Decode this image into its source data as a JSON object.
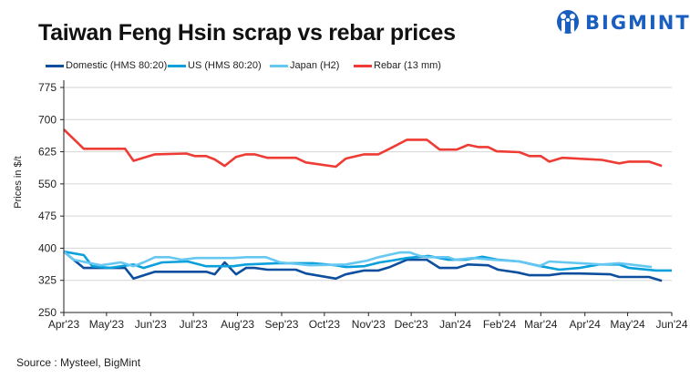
{
  "title": "Taiwan Feng Hsin scrap vs rebar prices",
  "logo_text": "BIGMINT",
  "source": "Source : Mysteel, BigMint",
  "chart_data": {
    "type": "line",
    "title": "Taiwan Feng Hsin scrap vs rebar prices",
    "ylabel": "Prices in $/t",
    "xlabel": "",
    "ylim": [
      250,
      775
    ],
    "yticks": [
      250,
      325,
      400,
      475,
      550,
      625,
      700,
      775
    ],
    "xlim": [
      "2023-04-01",
      "2024-06-01"
    ],
    "xticks": [
      {
        "date": "2023-04-01",
        "label": "Apr'23"
      },
      {
        "date": "2023-05-01",
        "label": "May'23"
      },
      {
        "date": "2023-06-01",
        "label": "Jun'23"
      },
      {
        "date": "2023-07-01",
        "label": "Jul'23"
      },
      {
        "date": "2023-08-01",
        "label": "Aug'23"
      },
      {
        "date": "2023-09-01",
        "label": "Sep'23"
      },
      {
        "date": "2023-10-01",
        "label": "Oct'23"
      },
      {
        "date": "2023-11-01",
        "label": "Nov'23"
      },
      {
        "date": "2023-12-01",
        "label": "Dec'23"
      },
      {
        "date": "2024-01-01",
        "label": "Jan'24"
      },
      {
        "date": "2024-02-01",
        "label": "Feb'24"
      },
      {
        "date": "2024-03-01",
        "label": "Mar'24"
      },
      {
        "date": "2024-04-01",
        "label": "Apr'24"
      },
      {
        "date": "2024-05-01",
        "label": "May'24"
      },
      {
        "date": "2024-06-01",
        "label": "Jun'24"
      }
    ],
    "grid": "horizontal",
    "legend_position": "top",
    "series": [
      {
        "name": "Domestic (HMS 80:20)",
        "color": "#0d4f9e",
        "points": [
          [
            "2023-04-01",
            392
          ],
          [
            "2023-04-15",
            354
          ],
          [
            "2023-05-14",
            354
          ],
          [
            "2023-05-20",
            329
          ],
          [
            "2023-06-04",
            345
          ],
          [
            "2023-07-10",
            345
          ],
          [
            "2023-07-16",
            339
          ],
          [
            "2023-07-23",
            367
          ],
          [
            "2023-07-31",
            339
          ],
          [
            "2023-08-07",
            354
          ],
          [
            "2023-08-13",
            354
          ],
          [
            "2023-08-22",
            350
          ],
          [
            "2023-09-11",
            350
          ],
          [
            "2023-09-18",
            341
          ],
          [
            "2023-10-09",
            329
          ],
          [
            "2023-10-16",
            339
          ],
          [
            "2023-10-29",
            348
          ],
          [
            "2023-11-08",
            348
          ],
          [
            "2023-11-16",
            356
          ],
          [
            "2023-11-28",
            373
          ],
          [
            "2023-12-12",
            373
          ],
          [
            "2023-12-21",
            354
          ],
          [
            "2024-01-02",
            354
          ],
          [
            "2024-01-10",
            362
          ],
          [
            "2024-01-24",
            360
          ],
          [
            "2024-01-31",
            350
          ],
          [
            "2024-02-14",
            343
          ],
          [
            "2024-02-22",
            337
          ],
          [
            "2024-03-07",
            337
          ],
          [
            "2024-03-16",
            341
          ],
          [
            "2024-03-28",
            341
          ],
          [
            "2024-04-19",
            339
          ],
          [
            "2024-04-25",
            333
          ],
          [
            "2024-05-16",
            333
          ],
          [
            "2024-05-25",
            324
          ]
        ]
      },
      {
        "name": "US (HMS 80:20)",
        "color": "#0aa0dc",
        "points": [
          [
            "2023-04-01",
            392
          ],
          [
            "2023-04-15",
            384
          ],
          [
            "2023-04-21",
            358
          ],
          [
            "2023-05-03",
            354
          ],
          [
            "2023-05-20",
            362
          ],
          [
            "2023-05-27",
            354
          ],
          [
            "2023-06-09",
            367
          ],
          [
            "2023-06-27",
            369
          ],
          [
            "2023-07-10",
            358
          ],
          [
            "2023-07-29",
            358
          ],
          [
            "2023-08-07",
            362
          ],
          [
            "2023-08-29",
            365
          ],
          [
            "2023-09-23",
            365
          ],
          [
            "2023-10-09",
            360
          ],
          [
            "2023-10-16",
            356
          ],
          [
            "2023-10-29",
            358
          ],
          [
            "2023-11-09",
            367
          ],
          [
            "2023-11-17",
            371
          ],
          [
            "2023-11-28",
            377
          ],
          [
            "2023-12-13",
            382
          ],
          [
            "2023-12-27",
            373
          ],
          [
            "2024-01-08",
            373
          ],
          [
            "2024-01-20",
            380
          ],
          [
            "2024-01-31",
            373
          ],
          [
            "2024-02-15",
            369
          ],
          [
            "2024-03-01",
            358
          ],
          [
            "2024-03-14",
            350
          ],
          [
            "2024-03-28",
            354
          ],
          [
            "2024-04-11",
            362
          ],
          [
            "2024-04-25",
            362
          ],
          [
            "2024-05-02",
            354
          ],
          [
            "2024-05-21",
            348
          ],
          [
            "2024-06-01",
            348
          ]
        ]
      },
      {
        "name": "Japan (H2)",
        "color": "#66c8f2",
        "points": [
          [
            "2023-04-01",
            392
          ],
          [
            "2023-04-08",
            373
          ],
          [
            "2023-04-27",
            360
          ],
          [
            "2023-05-11",
            367
          ],
          [
            "2023-05-20",
            358
          ],
          [
            "2023-05-27",
            367
          ],
          [
            "2023-06-04",
            379
          ],
          [
            "2023-06-14",
            379
          ],
          [
            "2023-06-23",
            373
          ],
          [
            "2023-07-03",
            377
          ],
          [
            "2023-07-29",
            377
          ],
          [
            "2023-08-07",
            379
          ],
          [
            "2023-08-21",
            379
          ],
          [
            "2023-08-31",
            367
          ],
          [
            "2023-09-21",
            360
          ],
          [
            "2023-10-16",
            362
          ],
          [
            "2023-10-31",
            371
          ],
          [
            "2023-11-08",
            379
          ],
          [
            "2023-11-23",
            390
          ],
          [
            "2023-11-30",
            390
          ],
          [
            "2023-12-07",
            382
          ],
          [
            "2023-12-13",
            379
          ],
          [
            "2023-12-27",
            379
          ],
          [
            "2024-01-01",
            373
          ],
          [
            "2024-01-13",
            377
          ],
          [
            "2024-01-27",
            373
          ],
          [
            "2024-02-15",
            369
          ],
          [
            "2024-02-29",
            358
          ],
          [
            "2024-03-07",
            369
          ],
          [
            "2024-04-13",
            362
          ],
          [
            "2024-04-25",
            365
          ],
          [
            "2024-05-18",
            356
          ]
        ]
      },
      {
        "name": "Rebar (13 mm)",
        "color": "#ee3b33",
        "points": [
          [
            "2023-04-01",
            677
          ],
          [
            "2023-04-15",
            632
          ],
          [
            "2023-05-14",
            632
          ],
          [
            "2023-05-20",
            604
          ],
          [
            "2023-06-04",
            619
          ],
          [
            "2023-06-26",
            621
          ],
          [
            "2023-07-02",
            615
          ],
          [
            "2023-07-10",
            615
          ],
          [
            "2023-07-16",
            607
          ],
          [
            "2023-07-23",
            592
          ],
          [
            "2023-07-31",
            613
          ],
          [
            "2023-08-07",
            619
          ],
          [
            "2023-08-13",
            619
          ],
          [
            "2023-08-22",
            611
          ],
          [
            "2023-09-11",
            611
          ],
          [
            "2023-09-18",
            600
          ],
          [
            "2023-10-09",
            590
          ],
          [
            "2023-10-16",
            609
          ],
          [
            "2023-10-29",
            619
          ],
          [
            "2023-11-08",
            619
          ],
          [
            "2023-11-17",
            634
          ],
          [
            "2023-11-28",
            653
          ],
          [
            "2023-12-12",
            653
          ],
          [
            "2023-12-21",
            630
          ],
          [
            "2024-01-02",
            630
          ],
          [
            "2024-01-10",
            641
          ],
          [
            "2024-01-17",
            636
          ],
          [
            "2024-01-24",
            636
          ],
          [
            "2024-01-30",
            626
          ],
          [
            "2024-02-15",
            624
          ],
          [
            "2024-02-22",
            615
          ],
          [
            "2024-03-01",
            615
          ],
          [
            "2024-03-07",
            602
          ],
          [
            "2024-03-16",
            611
          ],
          [
            "2024-04-13",
            606
          ],
          [
            "2024-04-25",
            598
          ],
          [
            "2024-05-02",
            602
          ],
          [
            "2024-05-16",
            602
          ],
          [
            "2024-05-25",
            592
          ]
        ]
      }
    ]
  }
}
